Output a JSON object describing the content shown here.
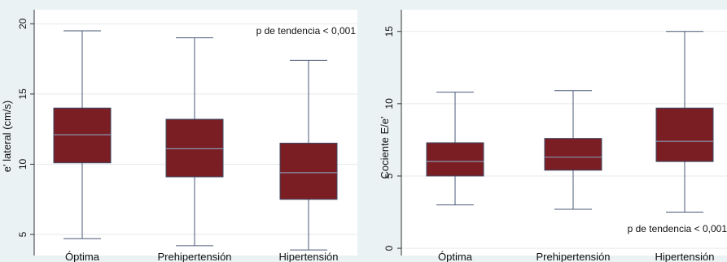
{
  "chart_data": [
    {
      "type": "box",
      "ylabel": "e' lateral (cm/s)",
      "ylim": [
        3.5,
        21
      ],
      "yticks": [
        5,
        10,
        15,
        20
      ],
      "yticklabels": [
        "5",
        "10",
        "15",
        "20"
      ],
      "categories": [
        "Óptima",
        "Prehipertensión",
        "Hipertensión"
      ],
      "boxes": [
        {
          "whisker_low": 4.7,
          "q1": 10.1,
          "median": 12.1,
          "q3": 14.0,
          "whisker_high": 19.5
        },
        {
          "whisker_low": 4.2,
          "q1": 9.1,
          "median": 11.1,
          "q3": 13.2,
          "whisker_high": 19.0
        },
        {
          "whisker_low": 3.9,
          "q1": 7.5,
          "median": 9.4,
          "q3": 11.5,
          "whisker_high": 17.4
        }
      ],
      "annotation": "p de tendencia < 0,001",
      "grid": true,
      "box_color": "#7a1e24"
    },
    {
      "type": "box",
      "ylabel": "Cociente E/e'",
      "ylim": [
        -0.5,
        16.5
      ],
      "yticks": [
        0,
        5,
        10,
        15
      ],
      "yticklabels": [
        "0",
        "5",
        "10",
        "15"
      ],
      "categories": [
        "Óptima",
        "Prehipertensión",
        "Hipertensión"
      ],
      "boxes": [
        {
          "whisker_low": 3.0,
          "q1": 5.0,
          "median": 6.0,
          "q3": 7.3,
          "whisker_high": 10.8
        },
        {
          "whisker_low": 2.7,
          "q1": 5.4,
          "median": 6.3,
          "q3": 7.6,
          "whisker_high": 10.9
        },
        {
          "whisker_low": 2.5,
          "q1": 6.0,
          "median": 7.4,
          "q3": 9.7,
          "whisker_high": 15.0
        }
      ],
      "annotation": "p de tendencia < 0,001",
      "grid": true,
      "box_color": "#7a1e24"
    }
  ]
}
